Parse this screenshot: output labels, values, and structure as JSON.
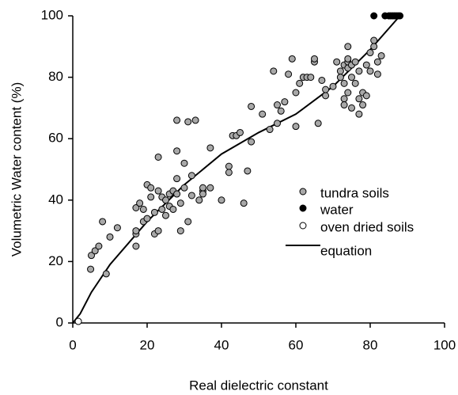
{
  "chart_data": {
    "type": "scatter",
    "xlabel": "Real dielectric constant",
    "ylabel": "Volumetric Water content (%)",
    "xlim": [
      0,
      100
    ],
    "xticks": [
      0,
      20,
      40,
      60,
      80,
      100
    ],
    "ylim": [
      0,
      100
    ],
    "yticks": [
      0,
      20,
      40,
      60,
      80,
      100
    ],
    "grid": false,
    "legend": "right",
    "series": [
      {
        "name": "tundra soils",
        "color": "#a8a8a8",
        "marker": "circle",
        "x": [
          4.8,
          5,
          6,
          7,
          8,
          9,
          10,
          12,
          17,
          17,
          17,
          17,
          18,
          19,
          19,
          20,
          20,
          21,
          21,
          22,
          22,
          23,
          23,
          23,
          24,
          24,
          25,
          25,
          26,
          26,
          27,
          27,
          28,
          28,
          28,
          28,
          29,
          29,
          30,
          30,
          31,
          31,
          32,
          32,
          33,
          34,
          35,
          35,
          35,
          37,
          37,
          40,
          42,
          42,
          43,
          44,
          45,
          46,
          47,
          48,
          48,
          51,
          53,
          54,
          55,
          55,
          56,
          57,
          58,
          59,
          60,
          60,
          61,
          62,
          63,
          64,
          65,
          65,
          66,
          67,
          68,
          68,
          70,
          71,
          72,
          72,
          73,
          73,
          73,
          74,
          74,
          74,
          74,
          75,
          75,
          75,
          76,
          76,
          77,
          77,
          77,
          78,
          78,
          79,
          79,
          80,
          80,
          81,
          81,
          82,
          82,
          83,
          73,
          74
        ],
        "values": [
          17.5,
          22,
          23.5,
          25,
          33,
          16,
          28,
          31,
          25,
          29,
          30,
          37.5,
          39,
          33,
          37,
          34,
          45,
          44,
          41,
          36,
          29,
          43,
          30,
          54,
          37,
          41,
          35,
          40,
          42,
          38,
          37,
          43,
          47,
          66,
          56,
          42,
          30,
          39,
          44,
          52,
          33,
          65.5,
          41.5,
          48,
          66,
          40,
          43,
          44,
          42,
          57,
          44,
          40,
          51,
          49,
          61,
          61,
          62,
          39,
          49.5,
          59,
          70.5,
          68,
          63,
          82,
          71,
          65,
          69,
          72,
          81,
          86,
          75,
          64,
          78,
          80,
          80,
          80,
          85,
          86,
          65,
          79,
          74,
          76,
          77,
          85,
          82,
          80,
          84,
          78,
          73,
          85,
          86,
          90,
          83,
          80,
          84,
          70,
          85,
          78,
          73,
          82,
          68,
          75,
          71,
          74,
          84,
          88,
          82,
          90,
          92,
          81,
          85,
          87,
          71,
          75
        ]
      },
      {
        "name": "water",
        "color": "#000000",
        "marker": "circle",
        "x": [
          81,
          84,
          85,
          85.5,
          86,
          86.5,
          87,
          87.5,
          88
        ],
        "values": [
          100,
          100,
          100,
          100,
          100,
          100,
          100,
          100,
          100
        ]
      },
      {
        "name": "oven dried soils",
        "color": "#ffffff",
        "marker": "circle",
        "x": [
          1.5
        ],
        "values": [
          0.5
        ]
      },
      {
        "name": "equation",
        "color": "#000000",
        "marker": "line",
        "x": [
          0,
          2,
          5,
          10,
          20,
          30,
          40,
          50,
          60,
          70,
          80,
          88
        ],
        "values": [
          0,
          3,
          10,
          19,
          33,
          45,
          55,
          62,
          68,
          77,
          89,
          100
        ]
      }
    ]
  }
}
